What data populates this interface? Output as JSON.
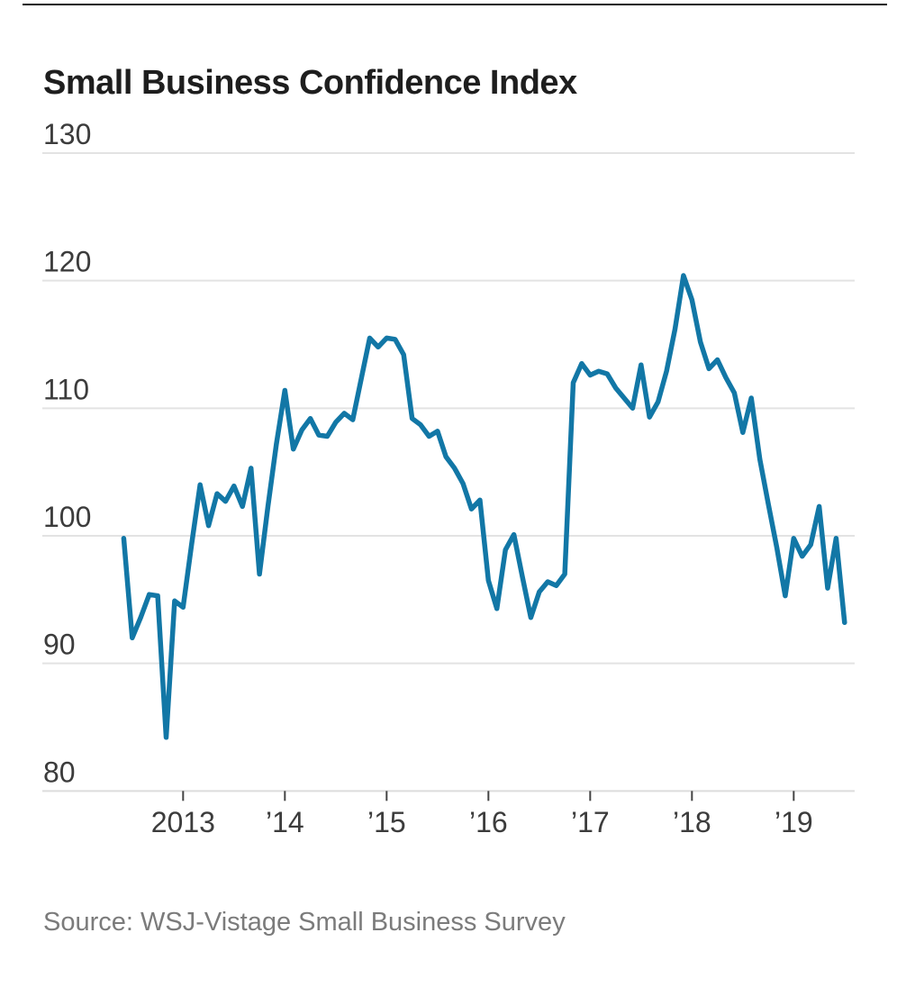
{
  "header": {
    "title": "Small Business Confidence Index"
  },
  "source": {
    "label": "Source: WSJ-Vistage Small Business Survey"
  },
  "colors": {
    "line": "#1277a6",
    "grid": "#e3e3e3",
    "baseline": "#dcdcdc",
    "tick": "#444444",
    "axis_text": "#3c3c3c",
    "title_text": "#1e1e1e",
    "source_text": "#7b7b7b",
    "top_rule": "#171717"
  },
  "chart_data": {
    "type": "line",
    "title": "Small Business Confidence Index",
    "xlabel": "",
    "ylabel": "",
    "ylim": [
      80,
      130
    ],
    "grid": "horizontal-only",
    "legend": "none",
    "yticks": [
      130,
      120,
      110,
      100,
      90,
      80
    ],
    "xticks": [
      {
        "label": "2013",
        "month_index": 7
      },
      {
        "label": "’14",
        "month_index": 19
      },
      {
        "label": "’15",
        "month_index": 31
      },
      {
        "label": "’16",
        "month_index": 43
      },
      {
        "label": "’17",
        "month_index": 55
      },
      {
        "label": "’18",
        "month_index": 67
      },
      {
        "label": "’19",
        "month_index": 79
      }
    ],
    "x_unit": "month",
    "x": [
      "2012-06",
      "2012-07",
      "2012-08",
      "2012-09",
      "2012-10",
      "2012-11",
      "2012-12",
      "2013-01",
      "2013-02",
      "2013-03",
      "2013-04",
      "2013-05",
      "2013-06",
      "2013-07",
      "2013-08",
      "2013-09",
      "2013-10",
      "2013-11",
      "2013-12",
      "2014-01",
      "2014-02",
      "2014-03",
      "2014-04",
      "2014-05",
      "2014-06",
      "2014-07",
      "2014-08",
      "2014-09",
      "2014-10",
      "2014-11",
      "2014-12",
      "2015-01",
      "2015-02",
      "2015-03",
      "2015-04",
      "2015-05",
      "2015-06",
      "2015-07",
      "2015-08",
      "2015-09",
      "2015-10",
      "2015-11",
      "2015-12",
      "2016-01",
      "2016-02",
      "2016-03",
      "2016-04",
      "2016-05",
      "2016-06",
      "2016-07",
      "2016-08",
      "2016-09",
      "2016-10",
      "2016-11",
      "2016-12",
      "2017-01",
      "2017-02",
      "2017-03",
      "2017-04",
      "2017-05",
      "2017-06",
      "2017-07",
      "2017-08",
      "2017-09",
      "2017-10",
      "2017-11",
      "2017-12",
      "2018-01",
      "2018-02",
      "2018-03",
      "2018-04",
      "2018-05",
      "2018-06",
      "2018-07",
      "2018-08",
      "2018-09",
      "2018-10",
      "2018-11",
      "2018-12",
      "2019-01",
      "2019-02",
      "2019-03",
      "2019-04",
      "2019-05",
      "2019-06",
      "2019-07"
    ],
    "values": [
      99.8,
      92.0,
      93.6,
      95.4,
      95.3,
      84.2,
      94.9,
      94.4,
      99.3,
      104.0,
      100.8,
      103.3,
      102.7,
      103.9,
      102.3,
      105.3,
      97.0,
      102.3,
      107.2,
      111.4,
      106.8,
      108.3,
      109.2,
      107.9,
      107.8,
      108.9,
      109.6,
      109.1,
      112.3,
      115.5,
      114.8,
      115.5,
      115.4,
      114.2,
      109.2,
      108.7,
      107.8,
      108.2,
      106.2,
      105.3,
      104.1,
      102.1,
      102.8,
      96.5,
      94.3,
      98.9,
      100.1,
      96.8,
      93.6,
      95.6,
      96.4,
      96.1,
      97.0,
      112.0,
      113.5,
      112.6,
      112.9,
      112.7,
      111.6,
      110.8,
      110.0,
      113.4,
      109.3,
      110.5,
      112.9,
      116.2,
      120.4,
      118.5,
      115.2,
      113.1,
      113.8,
      112.4,
      111.2,
      108.1,
      110.8,
      106.0,
      102.5,
      99.1,
      95.3,
      99.8,
      98.4,
      99.3,
      102.3,
      95.9,
      99.8,
      93.2
    ]
  }
}
